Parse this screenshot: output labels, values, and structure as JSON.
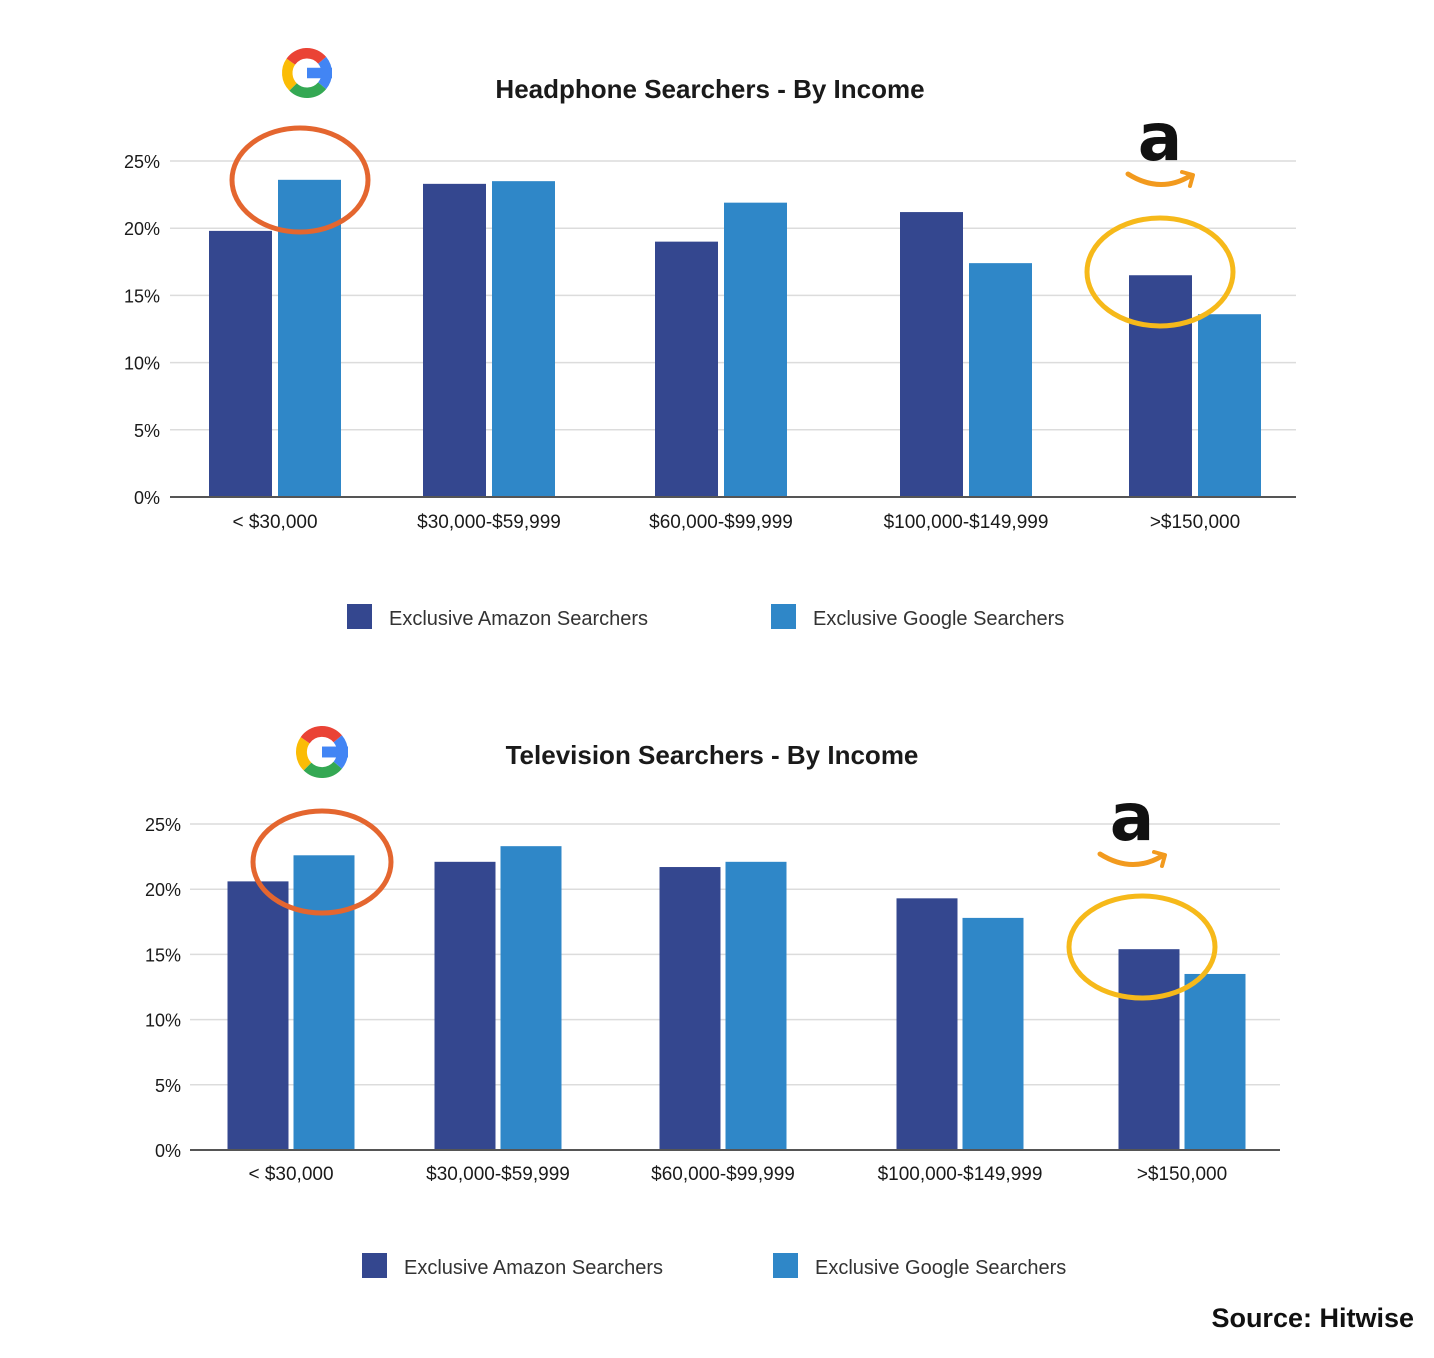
{
  "source": "Source: Hitwise",
  "colors": {
    "amazon_bar": "#34478f",
    "google_bar": "#2f87c8",
    "google_circle": "#e4662f",
    "amazon_circle": "#f6b91a",
    "grid": "#dcdcdc",
    "axis": "#555555",
    "text": "#1a1a1a"
  },
  "icons": [
    "google-logo-icon",
    "amazon-logo-icon",
    "legend-square-icon"
  ],
  "chart_data": [
    {
      "type": "bar",
      "title": "Headphone Searchers - By Income",
      "categories": [
        "< $30,000",
        "$30,000-$59,999",
        "$60,000-$99,999",
        "$100,000-$149,999",
        ">$150,000"
      ],
      "series": [
        {
          "name": "Exclusive Amazon Searchers",
          "values": [
            19.8,
            23.3,
            19.0,
            21.2,
            16.5
          ]
        },
        {
          "name": "Exclusive Google Searchers",
          "values": [
            23.6,
            23.5,
            21.9,
            17.4,
            13.6
          ]
        }
      ],
      "yticks": [
        "0%",
        "5%",
        "10%",
        "15%",
        "20%",
        "25%"
      ],
      "ylim": [
        0,
        25
      ],
      "grid": true,
      "legend": "bottom",
      "highlights": [
        {
          "category": "< $30,000",
          "series": "Exclusive Google Searchers",
          "logo": "google"
        },
        {
          "category": ">$150,000",
          "series": "Exclusive Amazon Searchers",
          "logo": "amazon"
        }
      ]
    },
    {
      "type": "bar",
      "title": "Television Searchers - By Income",
      "categories": [
        "< $30,000",
        "$30,000-$59,999",
        "$60,000-$99,999",
        "$100,000-$149,999",
        ">$150,000"
      ],
      "series": [
        {
          "name": "Exclusive Amazon Searchers",
          "values": [
            20.6,
            22.1,
            21.7,
            19.3,
            15.4
          ]
        },
        {
          "name": "Exclusive Google Searchers",
          "values": [
            22.6,
            23.3,
            22.1,
            17.8,
            13.5
          ]
        }
      ],
      "yticks": [
        "0%",
        "5%",
        "10%",
        "15%",
        "20%",
        "25%"
      ],
      "ylim": [
        0,
        25
      ],
      "grid": true,
      "legend": "bottom",
      "highlights": [
        {
          "category": "< $30,000",
          "series": "Exclusive Google Searchers",
          "logo": "google"
        },
        {
          "category": ">$150,000",
          "series": "Exclusive Amazon Searchers",
          "logo": "amazon"
        }
      ]
    }
  ]
}
